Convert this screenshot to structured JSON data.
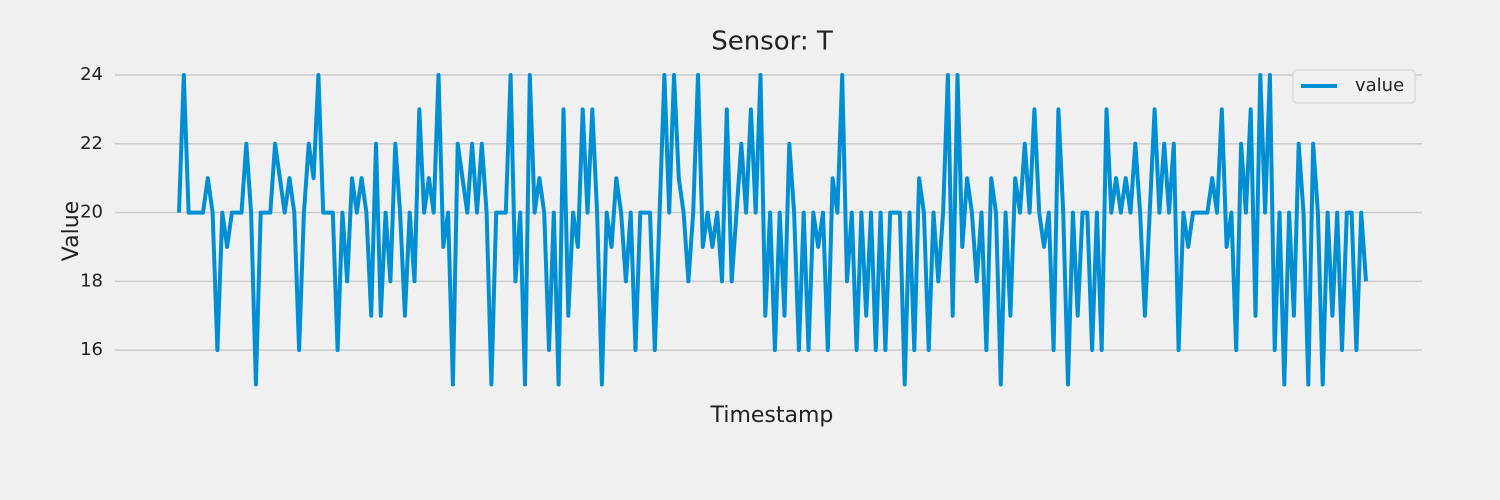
{
  "chart_data": {
    "type": "line",
    "title": "Sensor: T",
    "xlabel": "Timestamp",
    "ylabel": "Value",
    "ylim": [
      14.55,
      24.45
    ],
    "yticks": [
      16,
      18,
      20,
      22,
      24
    ],
    "grid": true,
    "legend": "upper right",
    "series": [
      {
        "name": "value",
        "color": "#008fd5",
        "values": [
          20,
          24,
          20,
          20,
          20,
          20,
          21,
          20,
          16,
          20,
          19,
          20,
          20,
          20,
          22,
          20,
          15,
          20,
          20,
          20,
          22,
          21,
          20,
          21,
          20,
          16,
          20,
          22,
          21,
          24,
          20,
          20,
          20,
          16,
          20,
          18,
          21,
          20,
          21,
          20,
          17,
          22,
          17,
          20,
          18,
          22,
          20,
          17,
          20,
          18,
          23,
          20,
          21,
          20,
          24,
          19,
          20,
          15,
          22,
          21,
          20,
          22,
          20,
          22,
          20,
          15,
          20,
          20,
          20,
          24,
          18,
          20,
          15,
          24,
          20,
          21,
          20,
          16,
          20,
          15,
          23,
          17,
          20,
          19,
          23,
          20,
          23,
          20,
          15,
          20,
          19,
          21,
          20,
          18,
          20,
          16,
          20,
          20,
          20,
          16,
          20,
          24,
          20,
          24,
          21,
          20,
          18,
          20,
          24,
          19,
          20,
          19,
          20,
          18,
          23,
          18,
          20,
          22,
          20,
          23,
          20,
          24,
          17,
          20,
          16,
          20,
          17,
          22,
          20,
          16,
          20,
          16,
          20,
          19,
          20,
          16,
          21,
          20,
          24,
          18,
          20,
          16,
          20,
          17,
          20,
          16,
          20,
          16,
          20,
          20,
          20,
          15,
          20,
          16,
          21,
          20,
          16,
          20,
          18,
          20,
          24,
          17,
          24,
          19,
          21,
          20,
          18,
          20,
          16,
          21,
          20,
          15,
          20,
          17,
          21,
          20,
          22,
          20,
          23,
          20,
          19,
          20,
          16,
          23,
          20,
          15,
          20,
          17,
          20,
          20,
          16,
          20,
          16,
          23,
          20,
          21,
          20,
          21,
          20,
          22,
          20,
          17,
          20,
          23,
          20,
          22,
          20,
          22,
          16,
          20,
          19,
          20,
          20,
          20,
          20,
          21,
          20,
          23,
          19,
          20,
          16,
          22,
          20,
          23,
          17,
          24,
          20,
          24,
          16,
          20,
          15,
          20,
          17,
          22,
          20,
          15,
          22,
          20,
          15,
          20,
          17,
          20,
          16,
          20,
          20,
          16,
          20,
          18
        ]
      }
    ]
  }
}
